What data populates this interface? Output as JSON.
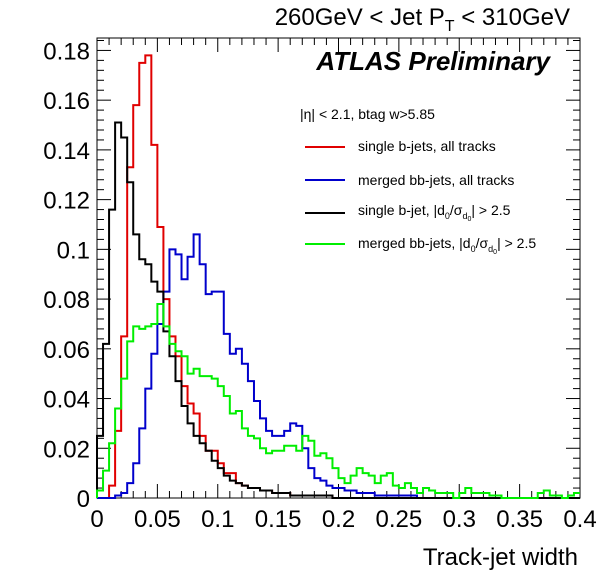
{
  "chart_data": {
    "type": "histogram-line",
    "title": "260GeV < Jet P_T < 310GeV",
    "title_parts": {
      "prefix": "260GeV < Jet P",
      "sub": "T",
      "suffix": " < 310GeV"
    },
    "experiment_label": "ATLAS Preliminary",
    "selection_text": "|η| < 2.1, btag w>5.85",
    "xlabel": "Track-jet width",
    "ylabel": "",
    "xlim": [
      0,
      0.4
    ],
    "ylim": [
      0,
      0.185
    ],
    "bin_width": 0.005,
    "x_ticks": [
      "0",
      "0.05",
      "0.1",
      "0.15",
      "0.2",
      "0.25",
      "0.3",
      "0.35",
      "0.4"
    ],
    "x_tick_values": [
      0,
      0.05,
      0.1,
      0.15,
      0.2,
      0.25,
      0.3,
      0.35,
      0.4
    ],
    "y_ticks": [
      "0",
      "0.02",
      "0.04",
      "0.06",
      "0.08",
      "0.1",
      "0.12",
      "0.14",
      "0.16",
      "0.18"
    ],
    "y_tick_values": [
      0,
      0.02,
      0.04,
      0.06,
      0.08,
      0.1,
      0.12,
      0.14,
      0.16,
      0.18
    ],
    "legend_position": "upper-right",
    "series": [
      {
        "name": "single b-jets, all tracks",
        "legend_parts": {
          "text": "single b-jets, all tracks"
        },
        "color": "#e00000",
        "values": [
          0.0,
          0.0,
          0.005,
          0.027,
          0.065,
          0.133,
          0.158,
          0.175,
          0.178,
          0.142,
          0.109,
          0.08,
          0.065,
          0.057,
          0.045,
          0.038,
          0.034,
          0.025,
          0.019,
          0.019,
          0.014,
          0.01,
          0.01,
          0.006,
          0.005,
          0.004,
          0.004,
          0.003,
          0.003,
          0.002,
          0.002,
          0.002,
          0.001,
          0.001,
          0.001,
          0.001,
          0.001,
          0.001,
          0.001,
          0.0,
          0.0,
          0.0,
          0.0,
          0.0,
          0.0,
          0.0,
          0.0,
          0.0,
          0.0,
          0.0,
          0.0,
          0.0,
          0.0,
          0.0,
          0.0,
          0.0,
          0.0,
          0.0,
          0.0,
          0.0,
          0.0,
          0.0,
          0.0,
          0.0,
          0.0,
          0.0,
          0.0,
          0.0,
          0.0,
          0.0,
          0.0,
          0.0,
          0.0,
          0.0,
          0.0,
          0.0,
          0.0,
          0.0,
          0.0,
          0.0
        ]
      },
      {
        "name": "merged bb-jets, all tracks",
        "legend_parts": {
          "text": "merged bb-jets, all tracks"
        },
        "color": "#0000cc",
        "values": [
          0.0,
          0.0,
          0.0,
          0.001,
          0.002,
          0.006,
          0.014,
          0.028,
          0.044,
          0.058,
          0.07,
          0.083,
          0.1,
          0.098,
          0.088,
          0.097,
          0.106,
          0.094,
          0.082,
          0.083,
          0.083,
          0.066,
          0.058,
          0.06,
          0.054,
          0.047,
          0.039,
          0.032,
          0.027,
          0.025,
          0.025,
          0.027,
          0.03,
          0.029,
          0.02,
          0.012,
          0.008,
          0.007,
          0.005,
          0.004,
          0.004,
          0.003,
          0.003,
          0.002,
          0.002,
          0.002,
          0.001,
          0.001,
          0.001,
          0.001,
          0.001,
          0.001,
          0.001,
          0.0,
          0.0,
          0.0,
          0.0,
          0.0,
          0.0,
          0.0,
          0.0,
          0.0,
          0.0,
          0.0,
          0.0,
          0.0,
          0.0,
          0.0,
          0.0,
          0.0,
          0.0,
          0.0,
          0.0,
          0.0,
          0.0,
          0.0,
          0.0,
          0.0,
          0.0,
          0.0
        ]
      },
      {
        "name": "single b-jet, |d0/σd0| > 2.5",
        "legend_parts": {
          "prefix": "single b-jet, |d",
          "sub1": "0",
          "mid": "/σ",
          "sub2": "d",
          "subsub": "0",
          "suffix": "| > 2.5"
        },
        "color": "#000000",
        "values": [
          0.025,
          0.062,
          0.116,
          0.151,
          0.145,
          0.127,
          0.106,
          0.096,
          0.094,
          0.087,
          0.083,
          0.067,
          0.057,
          0.047,
          0.037,
          0.03,
          0.025,
          0.022,
          0.019,
          0.015,
          0.012,
          0.009,
          0.007,
          0.006,
          0.005,
          0.004,
          0.004,
          0.003,
          0.003,
          0.002,
          0.002,
          0.002,
          0.001,
          0.001,
          0.001,
          0.001,
          0.001,
          0.001,
          0.001,
          0.0,
          0.0,
          0.0,
          0.0,
          0.0,
          0.0,
          0.0,
          0.0,
          0.0,
          0.0,
          0.0,
          0.0,
          0.0,
          0.0,
          0.0,
          0.0,
          0.0,
          0.0,
          0.0,
          0.0,
          0.0,
          0.0,
          0.0,
          0.0,
          0.0,
          0.0,
          0.0,
          0.0,
          0.0,
          0.0,
          0.0,
          0.0,
          0.0,
          0.0,
          0.0,
          0.0,
          0.0,
          0.0,
          0.0,
          0.0,
          0.0
        ]
      },
      {
        "name": "merged bb-jets, |d0/σd0| > 2.5",
        "legend_parts": {
          "prefix": "merged bb-jets, |d",
          "sub1": "0",
          "mid": "/σ",
          "sub2": "d",
          "subsub": "0",
          "suffix": "| > 2.5"
        },
        "color": "#00ee00",
        "values": [
          0.003,
          0.011,
          0.022,
          0.036,
          0.048,
          0.063,
          0.069,
          0.068,
          0.069,
          0.07,
          0.078,
          0.069,
          0.062,
          0.059,
          0.057,
          0.05,
          0.052,
          0.049,
          0.049,
          0.048,
          0.045,
          0.041,
          0.034,
          0.035,
          0.028,
          0.025,
          0.024,
          0.02,
          0.018,
          0.019,
          0.019,
          0.021,
          0.021,
          0.019,
          0.025,
          0.023,
          0.017,
          0.018,
          0.016,
          0.012,
          0.008,
          0.006,
          0.009,
          0.012,
          0.01,
          0.009,
          0.006,
          0.009,
          0.01,
          0.005,
          0.004,
          0.006,
          0.004,
          0.002,
          0.004,
          0.003,
          0.002,
          0.002,
          0.002,
          0.0,
          0.002,
          0.004,
          0.002,
          0.002,
          0.002,
          0.001,
          0.001,
          0.0,
          0.0,
          0.0,
          0.0,
          0.0,
          0.0,
          0.002,
          0.003,
          0.001,
          0.001,
          0.0,
          0.001,
          0.002
        ]
      }
    ]
  }
}
